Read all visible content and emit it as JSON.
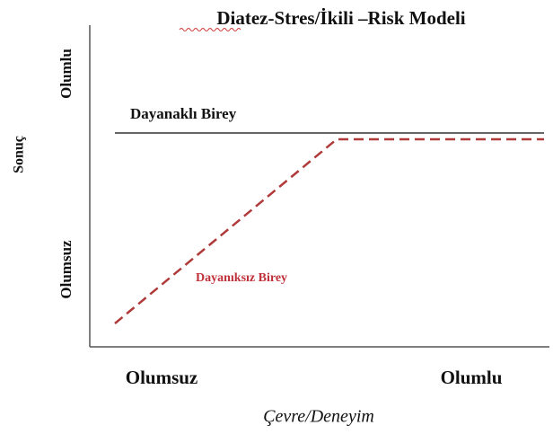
{
  "title": "Diatez-Stres/İkili –Risk Modeli",
  "y_axis": {
    "label": "Sonuç",
    "top": "Olumlu",
    "bottom": "Olumsuz"
  },
  "x_axis": {
    "label": "Çevre/Deneyim",
    "left": "Olumsuz",
    "right": "Olumlu"
  },
  "lines": [
    {
      "label": "Dayanaklı Birey"
    },
    {
      "label": "Dayanıksız Birey"
    }
  ]
}
